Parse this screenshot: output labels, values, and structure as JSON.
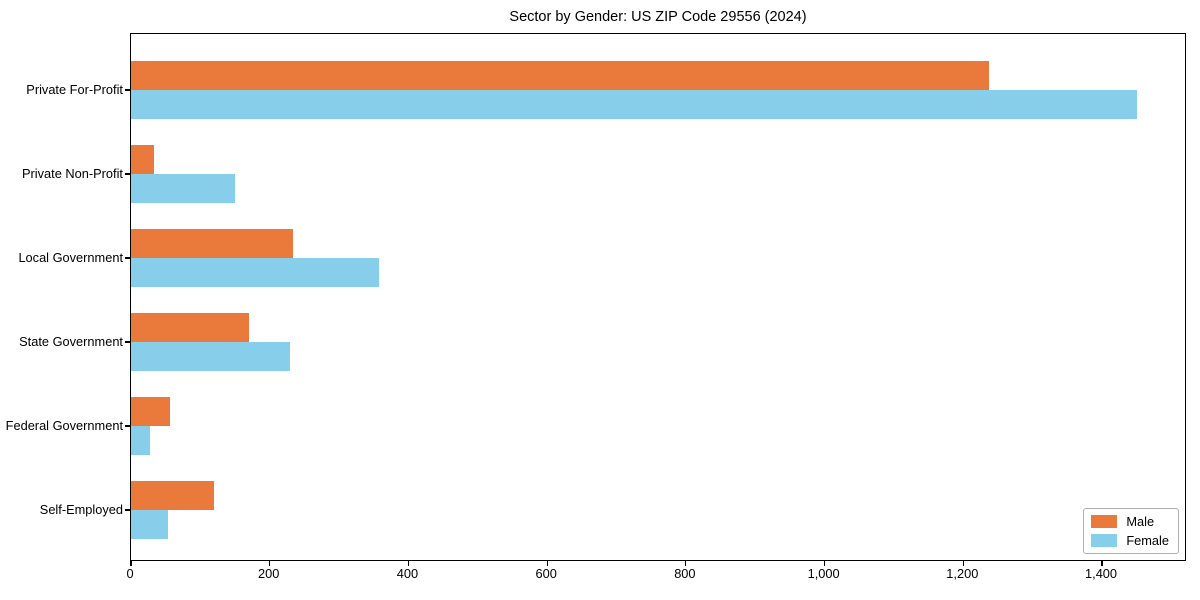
{
  "chart_data": {
    "type": "bar",
    "orientation": "horizontal",
    "title": "Sector by Gender: US ZIP Code 29556 (2024)",
    "xlabel": "",
    "ylabel": "",
    "categories": [
      "Private For-Profit",
      "Private Non-Profit",
      "Local Government",
      "State Government",
      "Federal Government",
      "Self-Employed"
    ],
    "series": [
      {
        "name": "Male",
        "color": "#E97A3B",
        "values": [
          1237,
          33,
          234,
          170,
          56,
          120
        ]
      },
      {
        "name": "Female",
        "color": "#86CEE9",
        "values": [
          1450,
          150,
          358,
          229,
          28,
          54
        ]
      }
    ],
    "xlim": [
      0,
      1522.5
    ],
    "xticks": [
      0,
      200,
      400,
      600,
      800,
      1000,
      1200,
      1400
    ],
    "xtick_labels": [
      "0",
      "200",
      "400",
      "600",
      "800",
      "1,000",
      "1,200",
      "1,400"
    ],
    "grid": false,
    "legend_position": "lower right",
    "plot_border_color": "#000000",
    "background_color": "#ffffff"
  }
}
